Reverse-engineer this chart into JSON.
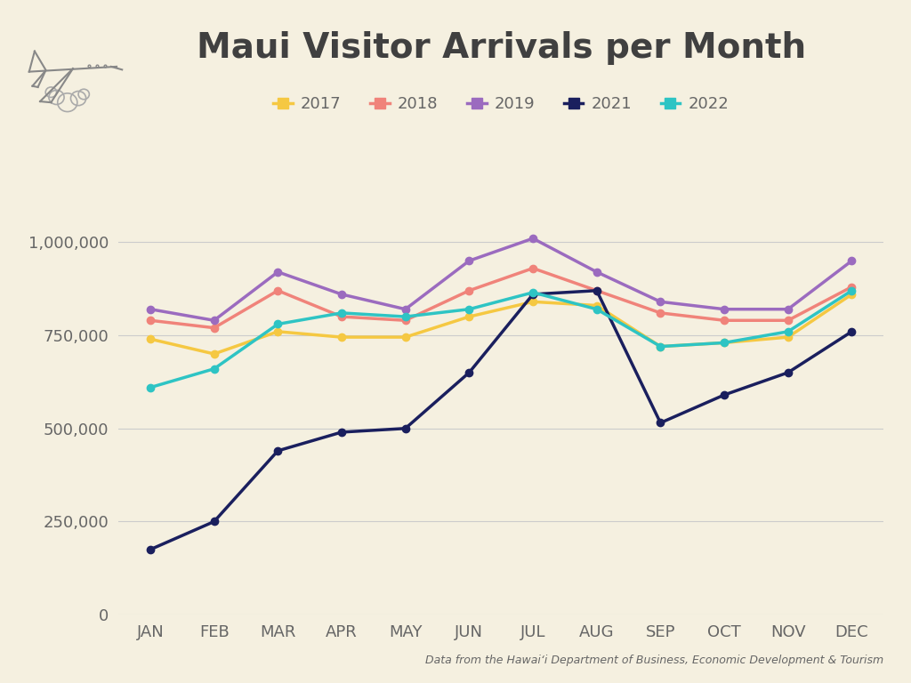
{
  "title": "Maui Visitor Arrivals per Month",
  "background_color": "#f5f0e0",
  "months": [
    "JAN",
    "FEB",
    "MAR",
    "APR",
    "MAY",
    "JUN",
    "JUL",
    "AUG",
    "SEP",
    "OCT",
    "NOV",
    "DEC"
  ],
  "series": {
    "2017": {
      "values": [
        740000,
        700000,
        760000,
        745000,
        745000,
        800000,
        840000,
        830000,
        720000,
        730000,
        745000,
        860000
      ],
      "color": "#f5c842",
      "linewidth": 2.5
    },
    "2018": {
      "values": [
        790000,
        770000,
        870000,
        800000,
        790000,
        870000,
        930000,
        870000,
        810000,
        790000,
        790000,
        880000
      ],
      "color": "#f0837a",
      "linewidth": 2.5
    },
    "2019": {
      "values": [
        820000,
        790000,
        920000,
        860000,
        820000,
        950000,
        1010000,
        920000,
        840000,
        820000,
        820000,
        950000
      ],
      "color": "#9b6bbf",
      "linewidth": 2.5
    },
    "2021": {
      "values": [
        175000,
        250000,
        440000,
        490000,
        500000,
        650000,
        860000,
        870000,
        515000,
        590000,
        650000,
        760000
      ],
      "color": "#1a1f5e",
      "linewidth": 2.5
    },
    "2022": {
      "values": [
        610000,
        660000,
        780000,
        810000,
        800000,
        820000,
        865000,
        820000,
        720000,
        730000,
        760000,
        870000
      ],
      "color": "#2ec4c4",
      "linewidth": 2.5
    }
  },
  "ylim": [
    0,
    1100000
  ],
  "yticks": [
    0,
    250000,
    500000,
    750000,
    1000000
  ],
  "ytick_labels": [
    "0",
    "250,000",
    "500,000",
    "750,000",
    "1,000,000"
  ],
  "source_text": "Data from the Hawaiʻi Department of Business, Economic Development & Tourism",
  "legend_order": [
    "2017",
    "2018",
    "2019",
    "2021",
    "2022"
  ],
  "marker": "o",
  "markersize": 6,
  "grid_color": "#cccccc",
  "text_color": "#666666",
  "title_color": "#404040",
  "title_fontsize": 28,
  "tick_fontsize": 13,
  "legend_fontsize": 13,
  "source_fontsize": 9
}
